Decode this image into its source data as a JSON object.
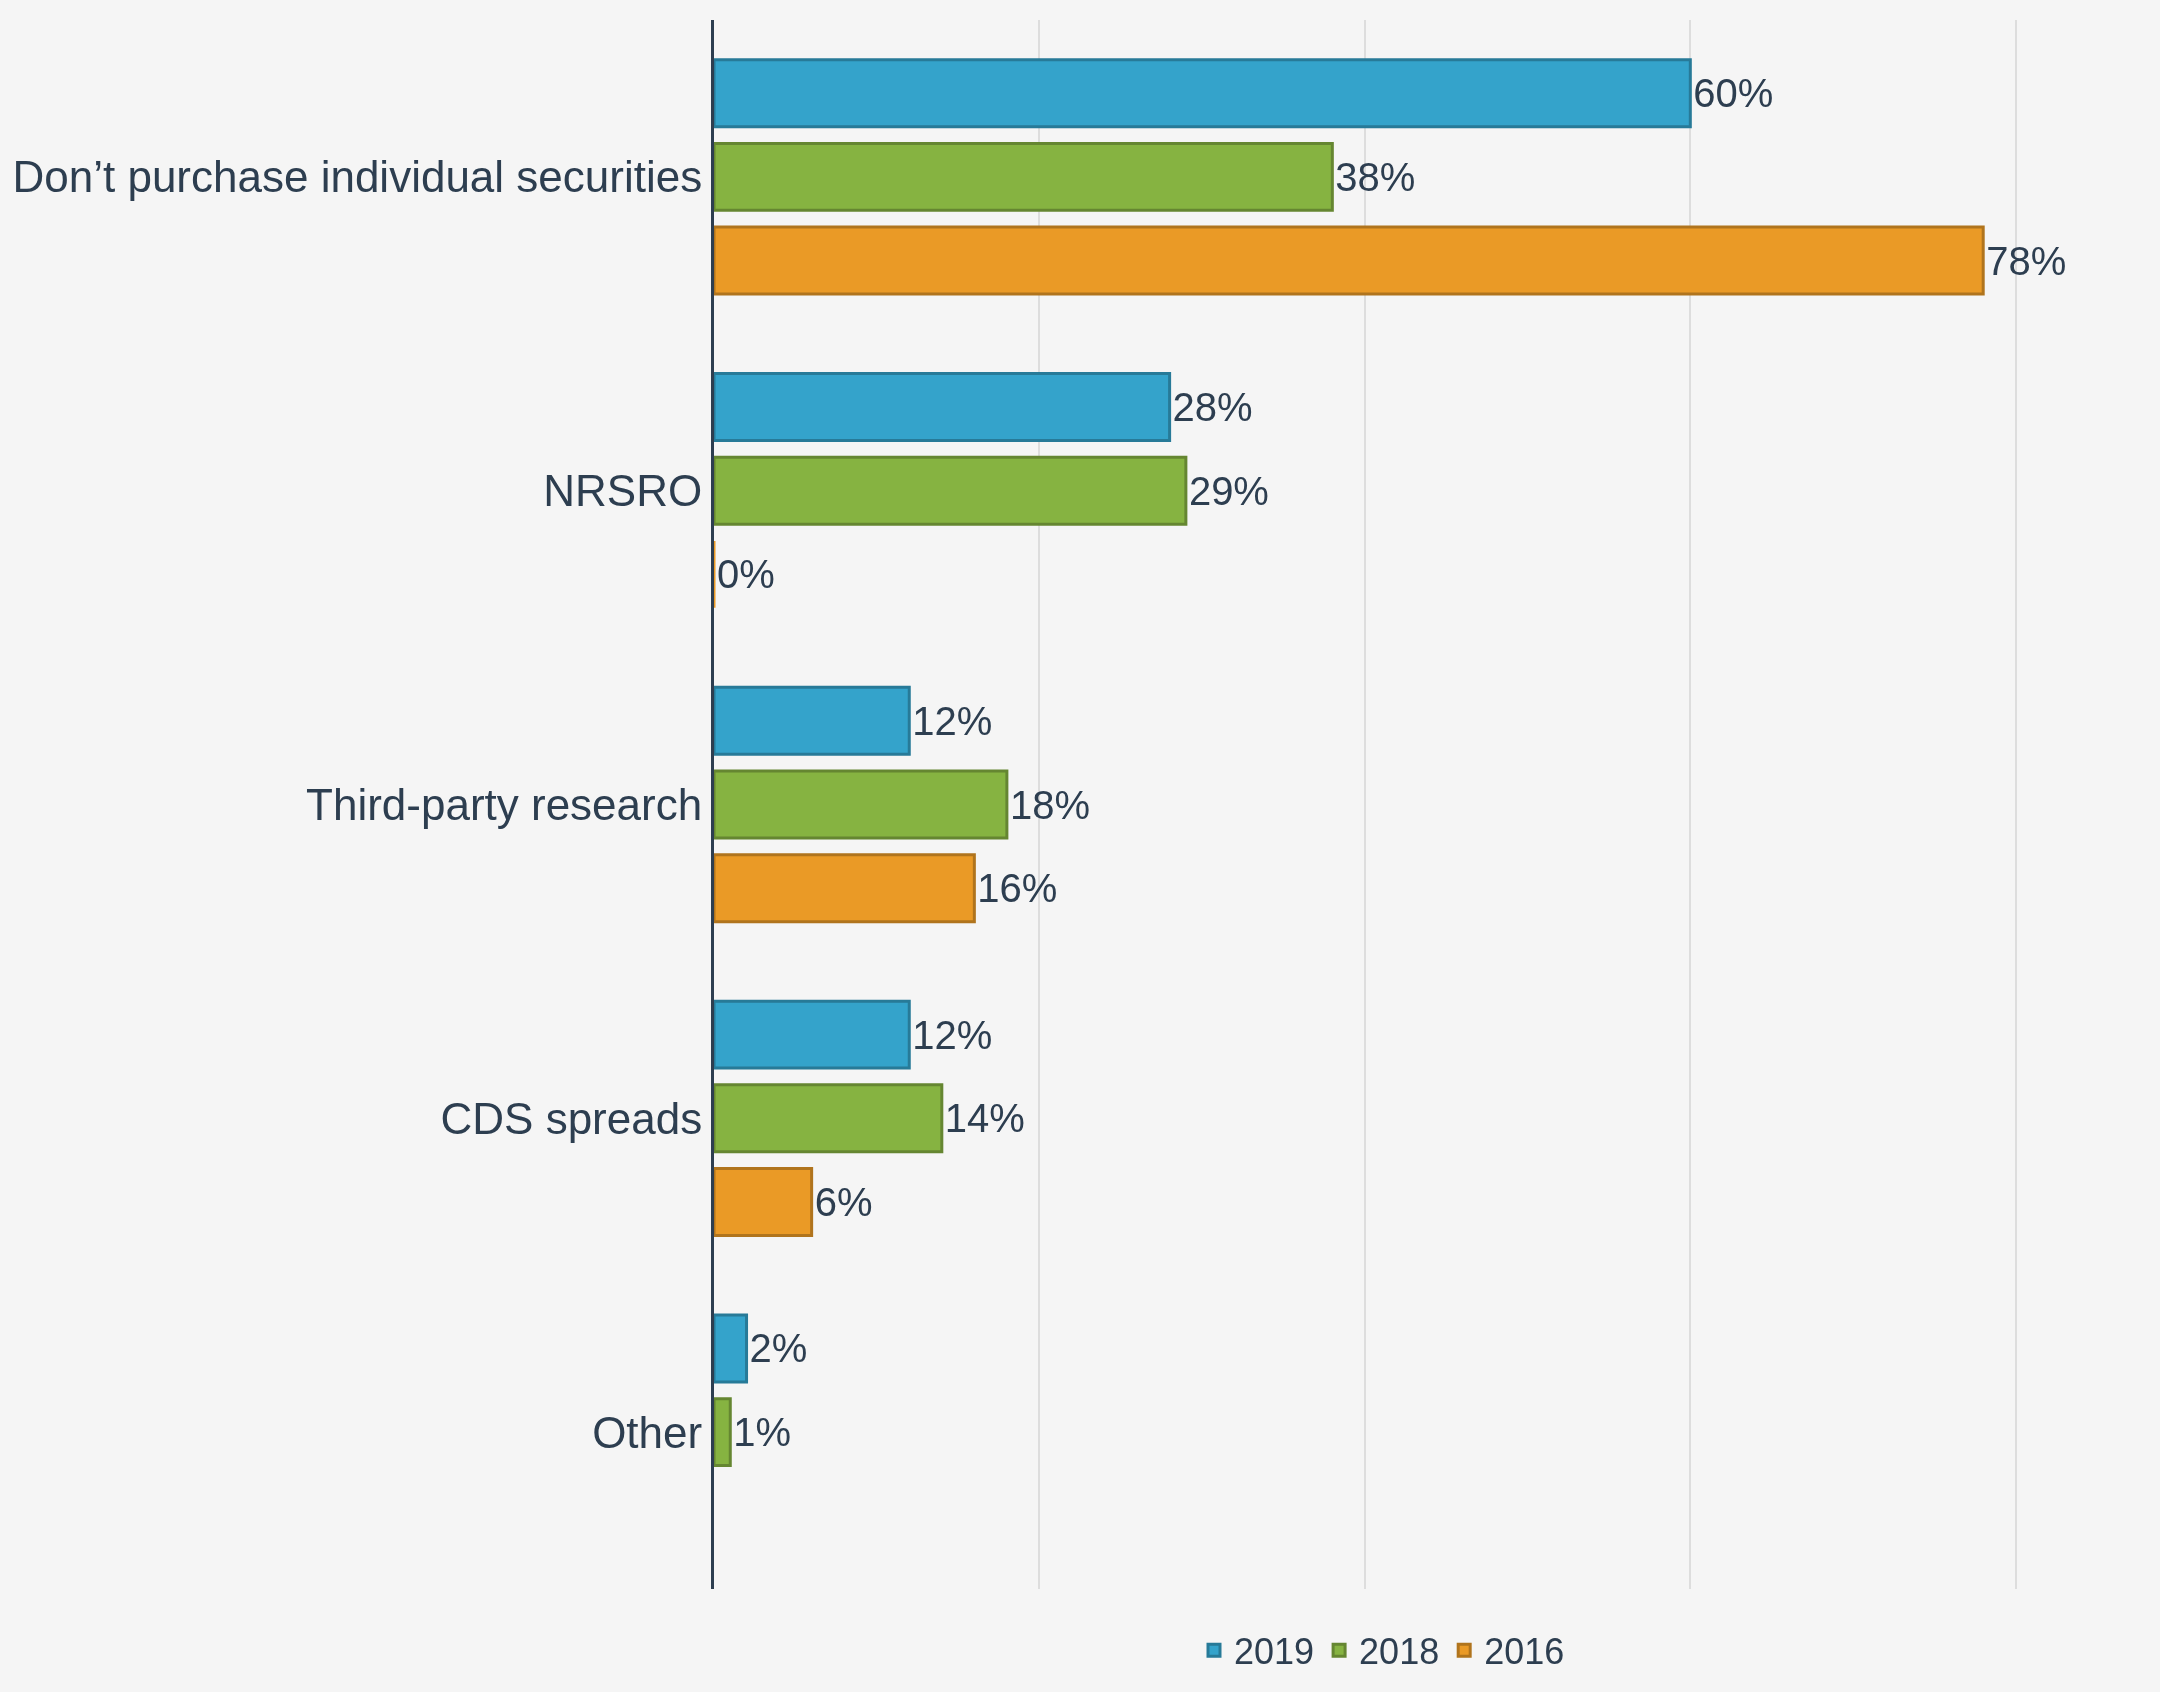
{
  "chart_data": {
    "type": "bar",
    "orientation": "horizontal",
    "categories": [
      "Don’t purchase individual securities",
      "NRSRO",
      "Third-party research",
      "CDS spreads",
      "Other"
    ],
    "series": [
      {
        "name": "2019",
        "color": "#34a3cb",
        "values": [
          60,
          28,
          12,
          12,
          2
        ],
        "value_labels": [
          "60%",
          "28%",
          "12%",
          "12%",
          "2%"
        ]
      },
      {
        "name": "2018",
        "color": "#86b341",
        "values": [
          38,
          29,
          18,
          14,
          1
        ],
        "value_labels": [
          "38%",
          "29%",
          "18%",
          "14%",
          "1%"
        ]
      },
      {
        "name": "2016",
        "color": "#ea9a26",
        "values": [
          78,
          0,
          16,
          6,
          null
        ],
        "value_labels": [
          "78%",
          "0%",
          "16%",
          "6%",
          null
        ]
      }
    ],
    "xticks": [
      {
        "value": 0,
        "label": null
      },
      {
        "value": 20,
        "label": null
      },
      {
        "value": 40,
        "label": null
      },
      {
        "value": 60,
        "label": null
      },
      {
        "value": 80,
        "label": null
      }
    ],
    "tick_labels": "y",
    "grid": "x",
    "legend": "bottom"
  }
}
